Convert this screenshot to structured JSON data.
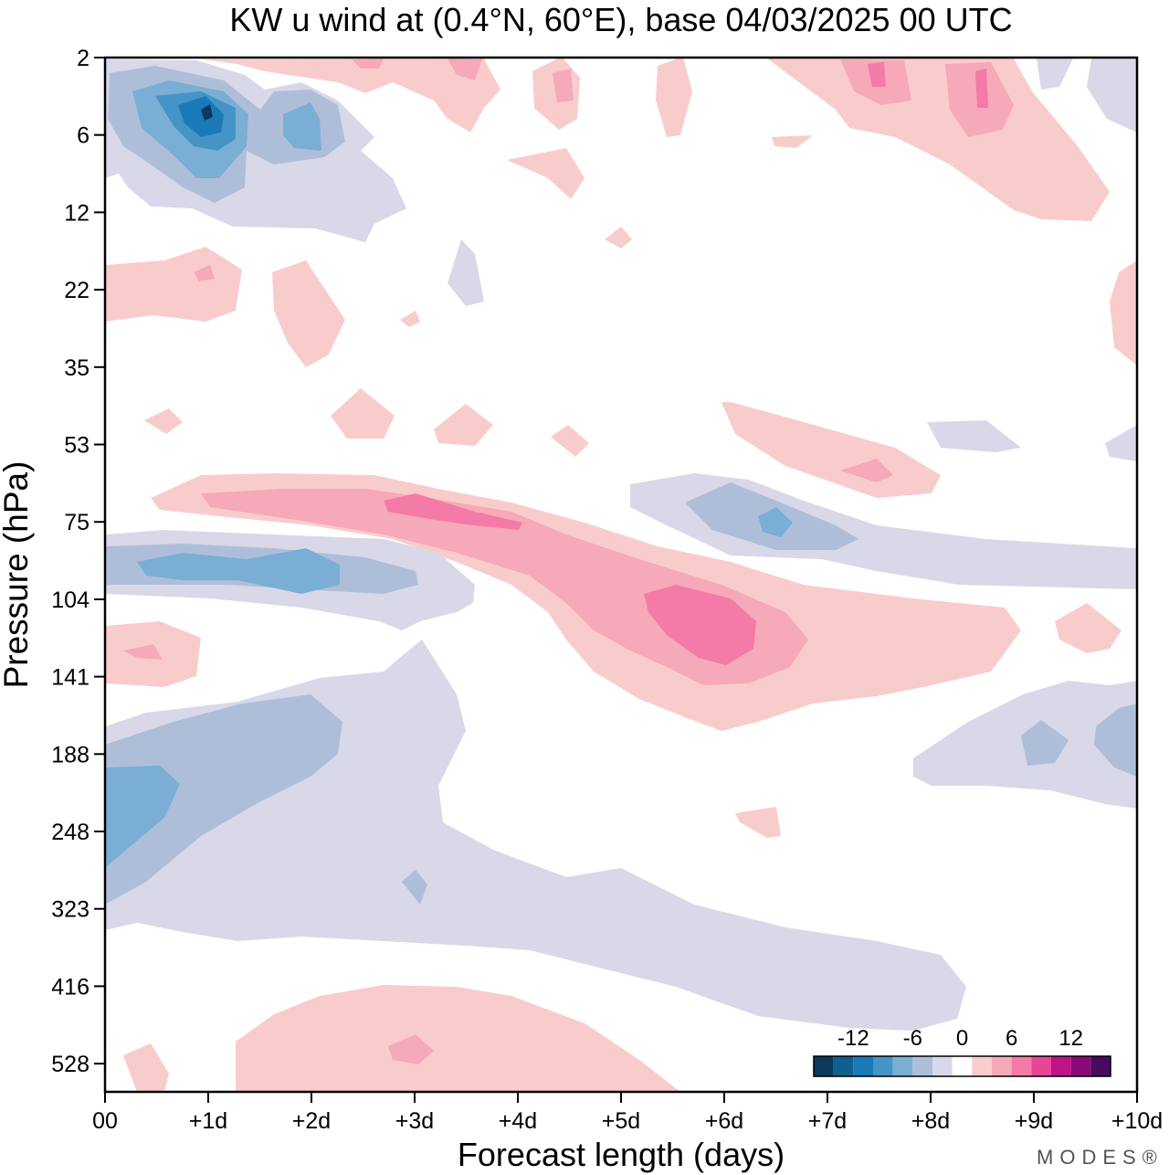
{
  "chart_data": {
    "type": "heatmap",
    "title": "KW u wind at (0.4°N, 60°E),  base 04/03/2025  00 UTC",
    "xlabel": "Forecast length (days)",
    "ylabel": "Pressure (hPa)",
    "x_ticks": [
      "00",
      "+1d",
      "+2d",
      "+3d",
      "+4d",
      "+5d",
      "+6d",
      "+7d",
      "+8d",
      "+9d",
      "+10d"
    ],
    "xlim": [
      0,
      10
    ],
    "y_ticks": [
      "2",
      "6",
      "12",
      "22",
      "35",
      "53",
      "75",
      "104",
      "141",
      "188",
      "248",
      "323",
      "416",
      "528"
    ],
    "y_axis_inverted": true,
    "colorbar": {
      "tick_labels": [
        "-12",
        "-6",
        "0",
        "6",
        "12"
      ],
      "levels": [
        -16,
        -14,
        -12,
        -10,
        -8,
        -6,
        -4,
        -2,
        2,
        4,
        6,
        8,
        10,
        12,
        14,
        16
      ],
      "colors": [
        "#0a3a5c",
        "#0f5f8f",
        "#1a7ab8",
        "#4494c6",
        "#7aaed4",
        "#aebed9",
        "#d8d8e8",
        "#ffffff",
        "#f9cccc",
        "#f6a9b8",
        "#f47aa7",
        "#e84596",
        "#c01387",
        "#8a0a7a",
        "#4a0a5e"
      ]
    },
    "features": [
      {
        "sign": "positive",
        "peak_ms": 8,
        "day_range": [
          0.5,
          6.8
        ],
        "pressure_range": [
          53,
          160
        ],
        "description_level": "tilted positive band"
      },
      {
        "sign": "positive",
        "peak_ms": 8,
        "day_range": [
          1.3,
          6.8
        ],
        "pressure_range": [
          104,
          160
        ]
      },
      {
        "sign": "negative",
        "peak_ms": -8,
        "day_range": [
          0,
          4.6
        ],
        "pressure_range": [
          75,
          120
        ]
      },
      {
        "sign": "negative",
        "peak_ms": -10,
        "day_range": [
          0,
          3.5
        ],
        "pressure_range": [
          141,
          340
        ]
      },
      {
        "sign": "negative",
        "peak_ms": -12,
        "day_range": [
          0.1,
          2.5
        ],
        "pressure_range": [
          2,
          14
        ]
      },
      {
        "sign": "positive",
        "peak_ms": 6,
        "day_range": [
          1.3,
          5.7
        ],
        "pressure_range": [
          430,
          560
        ]
      }
    ]
  },
  "branding": {
    "text": "MODES®"
  }
}
